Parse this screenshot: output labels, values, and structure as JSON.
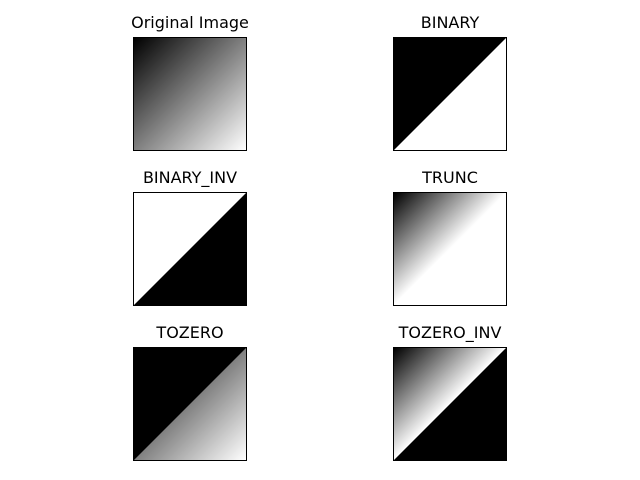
{
  "figure": {
    "background": "#ffffff",
    "panels": [
      {
        "title": "Original Image",
        "mode": "original"
      },
      {
        "title": "BINARY",
        "mode": "binary"
      },
      {
        "title": "BINARY_INV",
        "mode": "binary_inv"
      },
      {
        "title": "TRUNC",
        "mode": "trunc"
      },
      {
        "title": "TOZERO",
        "mode": "tozero"
      },
      {
        "title": "TOZERO_INV",
        "mode": "tozero_inv"
      }
    ]
  }
}
